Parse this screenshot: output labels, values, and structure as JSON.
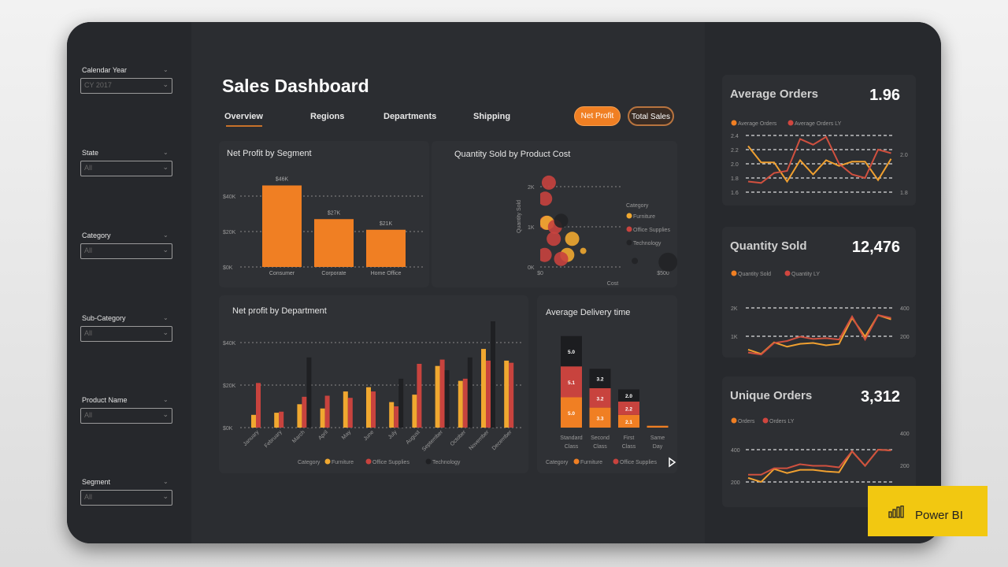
{
  "title": "Sales Dashboard",
  "filters": [
    {
      "label": "Calendar Year",
      "value": "CY 2017"
    },
    {
      "label": "State",
      "value": "All"
    },
    {
      "label": "Category",
      "value": "All"
    },
    {
      "label": "Sub-Category",
      "value": "All"
    },
    {
      "label": "Product Name",
      "value": "All"
    },
    {
      "label": "Segment",
      "value": "All"
    }
  ],
  "tabs": [
    {
      "label": "Overview",
      "active": true
    },
    {
      "label": "Regions"
    },
    {
      "label": "Departments"
    },
    {
      "label": "Shipping"
    }
  ],
  "buttons": {
    "net_profit": "Net Profit",
    "total_sales": "Total Sales"
  },
  "colors": {
    "accent": "#f07f23",
    "furniture": "#f0a830",
    "office_supplies": "#d0463f",
    "technology": "#1d1e21",
    "card": "#2f3135",
    "powerbi": "#f2c811"
  },
  "chart_data": [
    {
      "type": "bar",
      "title": "Net Profit by Segment",
      "categories": [
        "Consumer",
        "Corporate",
        "Home Office"
      ],
      "values": [
        46,
        27,
        21
      ],
      "data_labels": [
        "$46K",
        "$27K",
        "$21K"
      ],
      "yticks": [
        "$0K",
        "$20K",
        "$40K"
      ],
      "ylim": [
        0,
        50
      ],
      "grid": true
    },
    {
      "type": "scatter",
      "title": "Quantity Sold by Product Cost",
      "xlabel": "Cost",
      "ylabel": "Quantity Sold",
      "xticks": [
        "$0",
        "$500"
      ],
      "yticks": [
        "0K",
        "1K",
        "2K"
      ],
      "legend_title": "Category",
      "legend": [
        "Furniture",
        "Office Supplies",
        "Technology"
      ],
      "legend_position": "right",
      "points": [
        {
          "cat": "Office Supplies",
          "x": 35,
          "y": 2.1
        },
        {
          "cat": "Office Supplies",
          "x": 20,
          "y": 1.7
        },
        {
          "cat": "Office Supplies",
          "x": 25,
          "y": 1.1
        },
        {
          "cat": "Furniture",
          "x": 28,
          "y": 1.1
        },
        {
          "cat": "Office Supplies",
          "x": 60,
          "y": 1.0
        },
        {
          "cat": "Technology",
          "x": 85,
          "y": 1.15
        },
        {
          "cat": "Office Supplies",
          "x": 55,
          "y": 0.7
        },
        {
          "cat": "Furniture",
          "x": 130,
          "y": 0.7
        },
        {
          "cat": "Furniture",
          "x": 175,
          "y": 0.4
        },
        {
          "cat": "Furniture",
          "x": 110,
          "y": 0.3
        },
        {
          "cat": "Office Supplies",
          "x": 85,
          "y": 0.2
        },
        {
          "cat": "Office Supplies",
          "x": 18,
          "y": 0.3
        },
        {
          "cat": "Technology",
          "x": 385,
          "y": 0.15
        },
        {
          "cat": "Technology",
          "x": 520,
          "y": 0.12
        }
      ]
    },
    {
      "type": "bar",
      "title": "Net profit by Department",
      "categories": [
        "January",
        "February",
        "March",
        "April",
        "May",
        "June",
        "July",
        "August",
        "September",
        "October",
        "November",
        "December"
      ],
      "yticks": [
        "$0K",
        "$20K",
        "$40K"
      ],
      "ylim": [
        0,
        50
      ],
      "legend_title": "Category",
      "legend_position": "bottom",
      "series": [
        {
          "name": "Furniture",
          "values": [
            6,
            7,
            11,
            9,
            17,
            19,
            12,
            15.5,
            29,
            22,
            37,
            31.5
          ]
        },
        {
          "name": "Office Supplies",
          "values": [
            21,
            7.5,
            14.5,
            15,
            14,
            17,
            10,
            30,
            32,
            23,
            31.5,
            30.5
          ]
        },
        {
          "name": "Technology",
          "values": [
            null,
            null,
            33,
            null,
            null,
            null,
            23,
            null,
            27,
            33,
            50,
            null
          ]
        }
      ]
    },
    {
      "type": "bar",
      "stacked": true,
      "title": "Average Delivery time",
      "categories": [
        "Standard Class",
        "Second Class",
        "First Class",
        "Same Day"
      ],
      "legend_title": "Category",
      "legend": [
        "Furniture",
        "Office Supplies"
      ],
      "legend_position": "bottom",
      "series": [
        {
          "name": "Furniture",
          "values": [
            5.0,
            3.3,
            2.1,
            0.3
          ],
          "labels": [
            "5.0",
            "3.3",
            "2.1",
            ""
          ]
        },
        {
          "name": "Office Supplies",
          "values": [
            5.1,
            3.2,
            2.2,
            0
          ],
          "labels": [
            "5.1",
            "3.2",
            "2.2",
            ""
          ]
        },
        {
          "name": "Technology",
          "values": [
            5.0,
            3.2,
            2.0,
            0
          ],
          "labels": [
            "5.0",
            "3.2",
            "2.0",
            ""
          ]
        }
      ]
    }
  ],
  "kpis": [
    {
      "title": "Average Orders",
      "value": "1.96",
      "legend": [
        "Average Orders",
        "Average Orders LY"
      ],
      "yticks": [
        "1.6",
        "1.8",
        "2.0",
        "2.2",
        "2.4"
      ],
      "ylim": [
        1.6,
        2.4
      ],
      "y2ticks": [
        "1.8",
        "2.0"
      ],
      "series": [
        [
          2.25,
          2.02,
          2.02,
          1.75,
          2.05,
          1.85,
          2.05,
          1.97,
          2.03,
          2.03,
          1.77,
          2.07
        ],
        [
          1.75,
          1.73,
          1.87,
          1.9,
          2.35,
          2.27,
          2.38,
          2.0,
          1.85,
          1.8,
          2.2,
          2.15
        ]
      ]
    },
    {
      "title": "Quantity Sold",
      "value": "12,476",
      "legend": [
        "Quantity Sold",
        "Quantity LY"
      ],
      "yticks": [
        "0K",
        "1K",
        "2K"
      ],
      "ylim": [
        0,
        2
      ],
      "y2ticks": [
        "0",
        "200",
        "400"
      ],
      "series": [
        [
          0.55,
          0.4,
          0.8,
          0.65,
          0.75,
          0.78,
          0.7,
          0.75,
          1.65,
          1.0,
          1.75,
          1.6
        ],
        [
          0.45,
          0.38,
          0.78,
          0.85,
          1.0,
          0.92,
          0.95,
          0.9,
          1.7,
          0.9,
          1.75,
          1.65
        ]
      ]
    },
    {
      "title": "Unique Orders",
      "value": "3,312",
      "legend": [
        "Orders",
        "Orders LY"
      ],
      "yticks": [
        "200",
        "400"
      ],
      "ylim": [
        100,
        500
      ],
      "y2ticks": [
        "200",
        "400"
      ],
      "series": [
        [
          150,
          100,
          260,
          210,
          250,
          250,
          230,
          220,
          480,
          300,
          500,
          490
        ],
        [
          190,
          190,
          270,
          270,
          320,
          300,
          300,
          280,
          480,
          300,
          500,
          490
        ]
      ]
    }
  ],
  "badge": {
    "label": "Power BI"
  }
}
